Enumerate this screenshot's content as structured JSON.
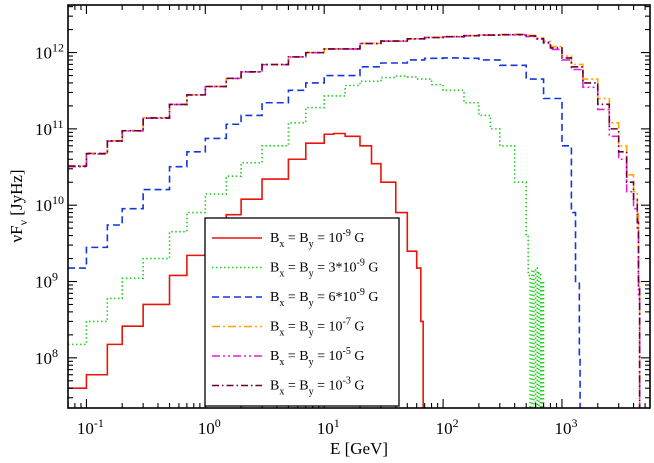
{
  "chart_data": {
    "type": "line",
    "title": "",
    "xlabel": "E [GeV]",
    "ylabel_main": "νF",
    "ylabel_sub": "ν",
    "ylabel_tail": " [JyHz]",
    "xscale": "log",
    "yscale": "log",
    "xlim": [
      0.07,
      5500
    ],
    "ylim": [
      22000000.0,
      4200000000000.0
    ],
    "x_ticks": [
      {
        "value": 0.1,
        "base": "10",
        "exp": "-1"
      },
      {
        "value": 1,
        "base": "10",
        "exp": "0"
      },
      {
        "value": 10,
        "base": "10",
        "exp": "1"
      },
      {
        "value": 100,
        "base": "10",
        "exp": "2"
      },
      {
        "value": 1000,
        "base": "10",
        "exp": "3"
      }
    ],
    "y_ticks": [
      {
        "value": 100000000.0,
        "base": "10",
        "exp": "8"
      },
      {
        "value": 1000000000.0,
        "base": "10",
        "exp": "9"
      },
      {
        "value": 10000000000.0,
        "base": "10",
        "exp": "10"
      },
      {
        "value": 100000000000.0,
        "base": "10",
        "exp": "11"
      },
      {
        "value": 1000000000000.0,
        "base": "10",
        "exp": "12"
      }
    ],
    "series": [
      {
        "label_pre": "B",
        "sub1": "x",
        "label_mid": " = B",
        "sub2": "y",
        "label_eq": " = ",
        "label_val": "10",
        "sup": "-9",
        "label_post": " G",
        "color": "#e8150b",
        "dash": "",
        "x": [
          0.07,
          0.1,
          0.15,
          0.2,
          0.3,
          0.5,
          0.7,
          1,
          1.5,
          2,
          3,
          5,
          7,
          10,
          12,
          15,
          20,
          25,
          30,
          40,
          50,
          60,
          65,
          68
        ],
        "y": [
          40000000.0,
          60000000.0,
          150000000.0,
          260000000.0,
          500000000.0,
          1200000000.0,
          2200000000.0,
          4000000000.0,
          7500000000.0,
          12000000000.0,
          22000000000.0,
          40000000000.0,
          65000000000.0,
          85000000000.0,
          87000000000.0,
          80000000000.0,
          60000000000.0,
          35000000000.0,
          20000000000.0,
          8000000000.0,
          2500000000.0,
          1500000000.0,
          300000000.0,
          22000000.0
        ]
      },
      {
        "label_pre": "B",
        "sub1": "x",
        "label_mid": " = B",
        "sub2": "y",
        "label_eq": " = ",
        "label_val": "3*10",
        "sup": "-9",
        "label_post": " G",
        "color": "#22cc22",
        "dash": "1.5,2.5",
        "x": [
          0.07,
          0.1,
          0.15,
          0.2,
          0.3,
          0.5,
          0.7,
          1,
          1.5,
          2,
          3,
          5,
          7,
          10,
          15,
          20,
          30,
          40,
          50,
          60,
          80,
          100,
          150,
          200,
          250,
          300,
          400,
          500,
          520,
          540,
          560,
          580,
          600,
          620,
          640,
          660,
          680,
          700
        ],
        "y": [
          150000000.0,
          300000000.0,
          600000000.0,
          1100000000.0,
          2000000000.0,
          4500000000.0,
          8000000000.0,
          14000000000.0,
          24000000000.0,
          36000000000.0,
          60000000000.0,
          120000000000.0,
          190000000000.0,
          270000000000.0,
          370000000000.0,
          420000000000.0,
          470000000000.0,
          490000000000.0,
          480000000000.0,
          450000000000.0,
          380000000000.0,
          320000000000.0,
          220000000000.0,
          150000000000.0,
          100000000000.0,
          60000000000.0,
          20000000000.0,
          4000000000.0,
          1200000000.0,
          22000000.0,
          1400000000.0,
          22000000.0,
          1500000000.0,
          22000000.0,
          1300000000.0,
          22000000.0,
          1000000000.0,
          22000000.0
        ]
      },
      {
        "label_pre": "B",
        "sub1": "x",
        "label_mid": " = B",
        "sub2": "y",
        "label_eq": " = ",
        "label_val": "6*10",
        "sup": "-9",
        "label_post": " G",
        "color": "#1535e0",
        "dash": "7,4",
        "x": [
          0.07,
          0.1,
          0.15,
          0.2,
          0.3,
          0.5,
          0.7,
          1,
          1.5,
          2,
          3,
          5,
          7,
          10,
          20,
          30,
          50,
          70,
          100,
          150,
          200,
          300,
          500,
          700,
          1000,
          1200,
          1300,
          1400,
          1420
        ],
        "y": [
          1500000000.0,
          2800000000.0,
          5500000000.0,
          9000000000.0,
          16000000000.0,
          32000000000.0,
          50000000000.0,
          75000000000.0,
          115000000000.0,
          150000000000.0,
          220000000000.0,
          320000000000.0,
          400000000000.0,
          500000000000.0,
          650000000000.0,
          730000000000.0,
          800000000000.0,
          840000000000.0,
          850000000000.0,
          840000000000.0,
          800000000000.0,
          680000000000.0,
          450000000000.0,
          250000000000.0,
          60000000000.0,
          8000000000.0,
          1000000000.0,
          100000000.0,
          22000000.0
        ]
      },
      {
        "label_pre": "B",
        "sub1": "x",
        "label_mid": " = B",
        "sub2": "y",
        "label_eq": " = ",
        "label_val": "10",
        "sup": "-7",
        "label_post": " G",
        "color": "#ffa500",
        "dash": "8,3,2,3",
        "x": [
          0.07,
          0.1,
          0.15,
          0.2,
          0.3,
          0.5,
          0.7,
          1,
          1.5,
          2,
          3,
          5,
          7,
          10,
          20,
          30,
          50,
          70,
          100,
          150,
          200,
          300,
          400,
          500,
          600,
          700,
          800,
          1000,
          1200,
          1500,
          2000,
          2500,
          3000,
          3500,
          4000,
          4300,
          4400,
          4500
        ],
        "y": [
          33000000000.0,
          48000000000.0,
          70000000000.0,
          95000000000.0,
          140000000000.0,
          210000000000.0,
          280000000000.0,
          360000000000.0,
          460000000000.0,
          560000000000.0,
          700000000000.0,
          880000000000.0,
          1000000000000.0,
          1120000000000.0,
          1320000000000.0,
          1420000000000.0,
          1520000000000.0,
          1580000000000.0,
          1620000000000.0,
          1670000000000.0,
          1700000000000.0,
          1720000000000.0,
          1730000000000.0,
          1680000000000.0,
          1550000000000.0,
          1400000000000.0,
          1200000000000.0,
          900000000000.0,
          700000000000.0,
          450000000000.0,
          250000000000.0,
          120000000000.0,
          60000000000.0,
          25000000000.0,
          15000000000.0,
          8000000000.0,
          1000000000.0,
          22000000.0
        ]
      },
      {
        "label_pre": "B",
        "sub1": "x",
        "label_mid": " = B",
        "sub2": "y",
        "label_eq": " = ",
        "label_val": "10",
        "sup": "-5",
        "label_post": " G",
        "color": "#e020e0",
        "dash": "8,3,2,3,2,3",
        "x": [
          0.07,
          0.1,
          0.15,
          0.2,
          0.3,
          0.5,
          0.7,
          1,
          1.5,
          2,
          3,
          5,
          7,
          10,
          20,
          30,
          50,
          70,
          100,
          150,
          200,
          300,
          400,
          500,
          600,
          700,
          800,
          1000,
          1200,
          1500,
          2000,
          2500,
          3000,
          3500,
          4000,
          4300,
          4400,
          4500
        ],
        "y": [
          32000000000.0,
          47000000000.0,
          69000000000.0,
          94000000000.0,
          138000000000.0,
          208000000000.0,
          278000000000.0,
          358000000000.0,
          458000000000.0,
          558000000000.0,
          695000000000.0,
          875000000000.0,
          995000000000.0,
          1110000000000.0,
          1310000000000.0,
          1410000000000.0,
          1510000000000.0,
          1570000000000.0,
          1610000000000.0,
          1660000000000.0,
          1690000000000.0,
          1710000000000.0,
          1700000000000.0,
          1620000000000.0,
          1500000000000.0,
          1320000000000.0,
          1100000000000.0,
          800000000000.0,
          600000000000.0,
          350000000000.0,
          180000000000.0,
          80000000000.0,
          40000000000.0,
          15000000000.0,
          9000000000.0,
          5000000000.0,
          600000000.0,
          22000000.0
        ]
      },
      {
        "label_pre": "B",
        "sub1": "x",
        "label_mid": " = B",
        "sub2": "y",
        "label_eq": " = ",
        "label_val": "10",
        "sup": "-3",
        "label_post": " G",
        "color": "#6a0030",
        "dash": "7,3,1.5,3",
        "x": [
          0.07,
          0.1,
          0.15,
          0.2,
          0.3,
          0.5,
          0.7,
          1,
          1.5,
          2,
          3,
          5,
          7,
          10,
          20,
          30,
          50,
          70,
          100,
          150,
          200,
          300,
          400,
          500,
          600,
          700,
          800,
          1000,
          1200,
          1500,
          2000,
          2500,
          3000,
          3500,
          4000,
          4300,
          4400,
          4500
        ],
        "y": [
          32500000000.0,
          47500000000.0,
          69500000000.0,
          94500000000.0,
          139000000000.0,
          209000000000.0,
          279000000000.0,
          359000000000.0,
          459000000000.0,
          559000000000.0,
          697000000000.0,
          878000000000.0,
          998000000000.0,
          1115000000000.0,
          1315000000000.0,
          1415000000000.0,
          1515000000000.0,
          1575000000000.0,
          1615000000000.0,
          1665000000000.0,
          1695000000000.0,
          1715000000000.0,
          1720000000000.0,
          1650000000000.0,
          1520000000000.0,
          1360000000000.0,
          1150000000000.0,
          850000000000.0,
          650000000000.0,
          400000000000.0,
          210000000000.0,
          100000000000.0,
          50000000000.0,
          20000000000.0,
          12000000000.0,
          6000000000.0,
          800000000.0,
          22000000.0
        ]
      }
    ],
    "legend_position": "center-left"
  }
}
